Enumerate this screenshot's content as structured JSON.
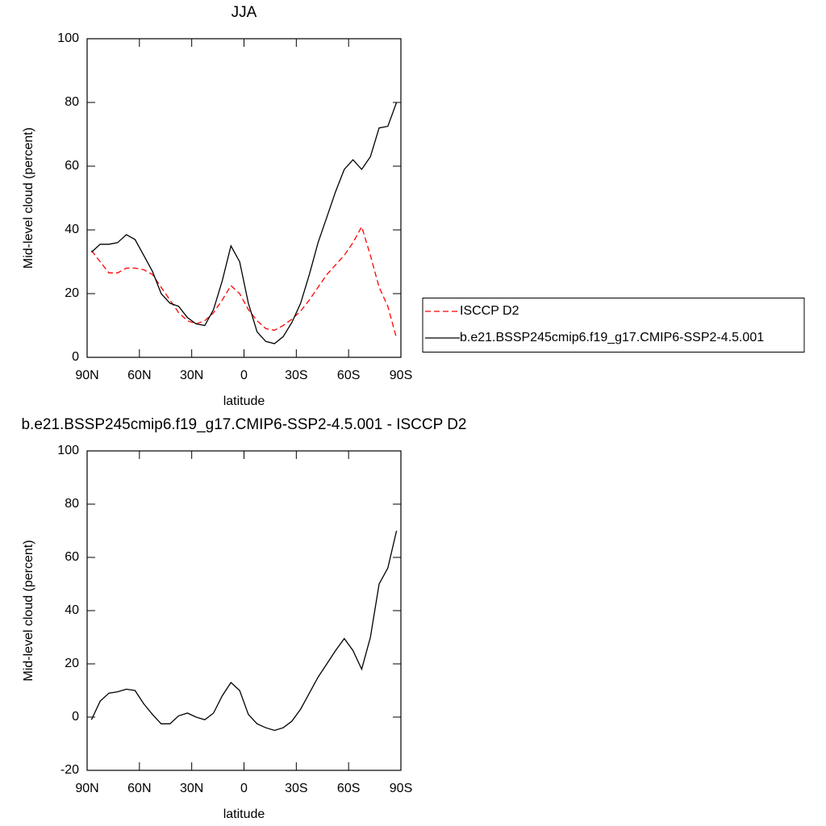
{
  "chart_data": [
    {
      "type": "line",
      "title": "JJA",
      "xlabel": "latitude",
      "ylabel": "Mid-level cloud (percent)",
      "x": [
        87.5,
        82.5,
        77.5,
        72.5,
        67.5,
        62.5,
        57.5,
        52.5,
        47.5,
        42.5,
        37.5,
        32.5,
        27.5,
        22.5,
        17.5,
        12.5,
        7.5,
        2.5,
        -2.5,
        -7.5,
        -12.5,
        -17.5,
        -22.5,
        -27.5,
        -32.5,
        -37.5,
        -42.5,
        -47.5,
        -52.5,
        -57.5,
        -62.5,
        -67.5,
        -72.5,
        -77.5,
        -82.5,
        -87.5
      ],
      "series": [
        {
          "name": "ISCCP D2",
          "color": "#ff0000",
          "dash": true,
          "values": [
            33.5,
            30,
            26.5,
            26.5,
            28,
            28,
            27.5,
            26,
            22,
            18,
            14,
            11.5,
            10.5,
            11.5,
            14,
            18,
            22.5,
            20,
            15,
            11.5,
            9,
            8.5,
            10,
            12,
            14.5,
            18,
            22,
            26,
            29,
            32,
            36,
            41,
            32,
            22,
            16,
            6
          ]
        },
        {
          "name": "b.e21.BSSP245cmip6.f19_g17.CMIP6-SSP2-4.5.001",
          "color": "#000000",
          "dash": false,
          "values": [
            33,
            35.5,
            35.5,
            36,
            38.5,
            37,
            32,
            27,
            20,
            17,
            16,
            12.5,
            10.5,
            10,
            15,
            24,
            35,
            30,
            17,
            8,
            5,
            4.3,
            6.5,
            11,
            17,
            26,
            36,
            44,
            52,
            59,
            62,
            59,
            63,
            72,
            72.5,
            80
          ]
        }
      ],
      "xlim": [
        90,
        -90
      ],
      "xticks": [
        {
          "value": 90,
          "label": "90N"
        },
        {
          "value": 60,
          "label": "60N"
        },
        {
          "value": 30,
          "label": "30N"
        },
        0,
        {
          "value": -30,
          "label": "30S"
        },
        {
          "value": -60,
          "label": "60S"
        },
        {
          "value": -90,
          "label": "90S"
        }
      ],
      "ylim": [
        0,
        100
      ],
      "yticks": [
        0,
        20,
        40,
        60,
        80,
        100
      ],
      "legend": "right"
    },
    {
      "type": "line",
      "title": "b.e21.BSSP245cmip6.f19_g17.CMIP6-SSP2-4.5.001 - ISCCP D2",
      "xlabel": "latitude",
      "ylabel": "Mid-level cloud (percent)",
      "x": [
        87.5,
        82.5,
        77.5,
        72.5,
        67.5,
        62.5,
        57.5,
        52.5,
        47.5,
        42.5,
        37.5,
        32.5,
        27.5,
        22.5,
        17.5,
        12.5,
        7.5,
        2.5,
        -2.5,
        -7.5,
        -12.5,
        -17.5,
        -22.5,
        -27.5,
        -32.5,
        -37.5,
        -42.5,
        -47.5,
        -52.5,
        -57.5,
        -62.5,
        -67.5,
        -72.5,
        -77.5,
        -82.5,
        -87.5
      ],
      "series": [
        {
          "color": "#000000",
          "dash": false,
          "values": [
            -1,
            6,
            9,
            9.5,
            10.5,
            10,
            5,
            1,
            -2.5,
            -2.5,
            0.5,
            1.5,
            0,
            -1,
            1.5,
            8,
            13,
            10,
            1,
            -2.5,
            -4,
            -5,
            -4,
            -1.5,
            3,
            9,
            15,
            20,
            25,
            29.5,
            25,
            18,
            30,
            50,
            56,
            70
          ]
        }
      ],
      "xlim": [
        90,
        -90
      ],
      "xticks": [
        {
          "value": 90,
          "label": "90N"
        },
        {
          "value": 60,
          "label": "60N"
        },
        {
          "value": 30,
          "label": "30N"
        },
        0,
        {
          "value": -30,
          "label": "30S"
        },
        {
          "value": -60,
          "label": "60S"
        },
        {
          "value": -90,
          "label": "90S"
        }
      ],
      "ylim": [
        -20,
        100
      ],
      "yticks": [
        -20,
        0,
        20,
        40,
        60,
        80,
        100
      ]
    }
  ]
}
